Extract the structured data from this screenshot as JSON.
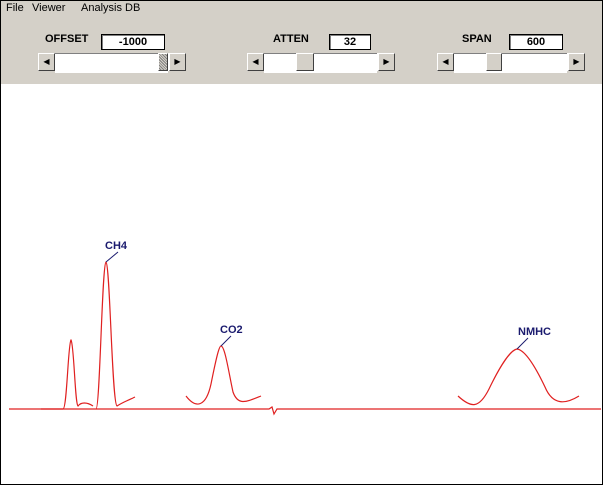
{
  "menu": {
    "items": [
      "File",
      "Viewer",
      "Analysis DB"
    ]
  },
  "controls": {
    "offset": {
      "label": "OFFSET",
      "value": "-1000"
    },
    "atten": {
      "label": "ATTEN",
      "value": "32"
    },
    "span": {
      "label": "SPAN",
      "value": "600"
    }
  },
  "chromatogram": {
    "trace_color": "#e02020",
    "label_color": "#1a1a6e",
    "peaks": [
      {
        "label": "CH4"
      },
      {
        "label": "CO2"
      },
      {
        "label": "NMHC"
      }
    ]
  }
}
